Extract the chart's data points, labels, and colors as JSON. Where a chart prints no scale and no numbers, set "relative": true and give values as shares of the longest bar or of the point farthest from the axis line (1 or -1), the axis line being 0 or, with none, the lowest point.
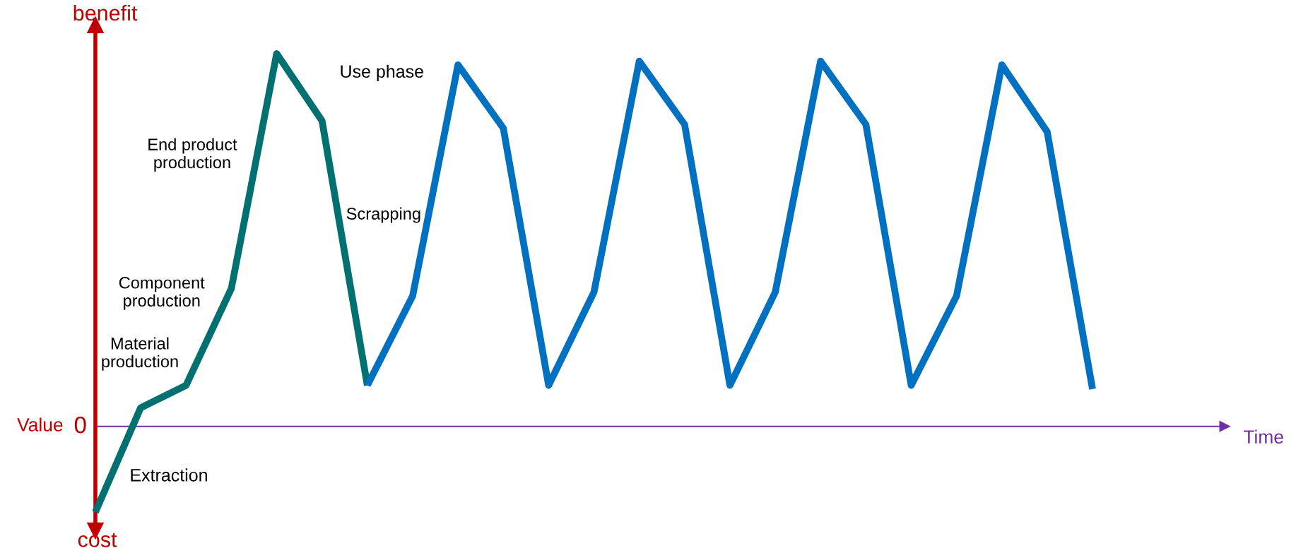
{
  "chart_data": {
    "type": "line",
    "relative": true,
    "ylabel": "Value",
    "categories": [
      null,
      null,
      null,
      null,
      null,
      null,
      null,
      null,
      null,
      null,
      null,
      null,
      null,
      null,
      null,
      null,
      null,
      null,
      null,
      null,
      null,
      null,
      null
    ],
    "series": [
      {
        "color": "#007070",
        "values": [
          -0.23,
          0.05,
          0.11,
          0.37,
          1.0,
          0.82,
          0.11,
          null,
          null,
          null,
          null,
          null,
          null,
          null,
          null,
          null,
          null,
          null,
          null,
          null,
          null,
          null,
          null
        ]
      },
      {
        "color": "#0070c0",
        "values": [
          null,
          null,
          null,
          null,
          null,
          null,
          0.11,
          0.35,
          0.97,
          0.8,
          0.11,
          0.36,
          0.98,
          0.81,
          0.11,
          0.36,
          0.98,
          0.81,
          0.11,
          0.35,
          0.97,
          0.79,
          0.1
        ]
      }
    ],
    "annotations": [
      "benefit",
      "cost",
      "0",
      "Extraction",
      "Material production",
      "Component production",
      "End product production",
      "Use phase",
      "Scrapping",
      "Time"
    ],
    "ref_lines": [
      {
        "axis": "y",
        "value": 0,
        "color": "#7030a0"
      }
    ],
    "marker": "none",
    "line_style": "solid",
    "grid": false,
    "legend": false
  }
}
